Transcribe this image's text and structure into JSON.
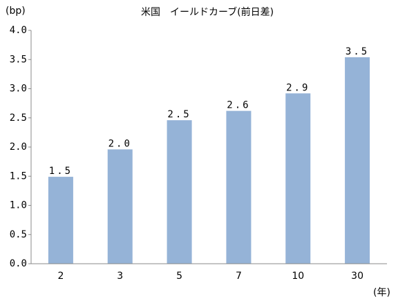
{
  "chart_data": {
    "type": "bar",
    "title": "米国　イールドカーブ(前日差)",
    "y_label": "(bp)",
    "x_label": "(年)",
    "categories": [
      "2",
      "3",
      "5",
      "7",
      "10",
      "30"
    ],
    "values": [
      1.49,
      1.96,
      2.46,
      2.62,
      2.92,
      3.54
    ],
    "value_labels": [
      "1.5",
      "2.0",
      "2.5",
      "2.6",
      "2.9",
      "3.5"
    ],
    "color": "#95b3d7",
    "ylim": [
      0,
      4
    ],
    "yticks": [
      {
        "value": 0,
        "label": "0.0"
      },
      {
        "value": 0.5,
        "label": "0.5"
      },
      {
        "value": 1,
        "label": "1.0"
      },
      {
        "value": 1.5,
        "label": "1.5"
      },
      {
        "value": 2,
        "label": "2.0"
      },
      {
        "value": 2.5,
        "label": "2.5"
      },
      {
        "value": 3,
        "label": "3.0"
      },
      {
        "value": 3.5,
        "label": "3.5"
      },
      {
        "value": 4,
        "label": "4.0"
      }
    ],
    "grid": false
  }
}
